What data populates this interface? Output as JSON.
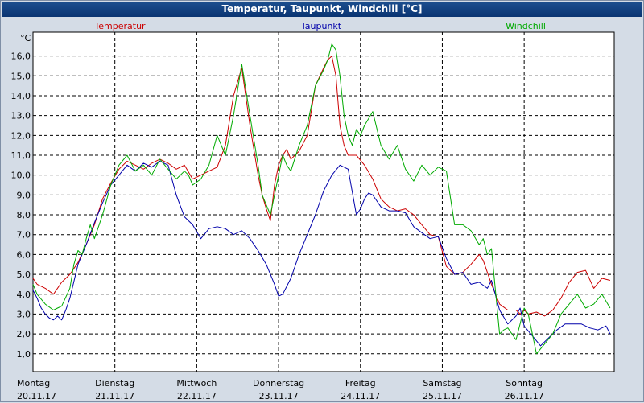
{
  "window": {
    "title": "Temperatur, Taupunkt, Windchill [°C]"
  },
  "chart_data": {
    "type": "line",
    "title": "Temperatur, Taupunkt, Windchill [°C]",
    "y_unit": "°C",
    "ylim": [
      0.1,
      17.2
    ],
    "yticks": [
      "1,0",
      "2,0",
      "3,0",
      "4,0",
      "5,0",
      "6,0",
      "7,0",
      "8,0",
      "9,0",
      "10,0",
      "11,0",
      "12,0",
      "13,0",
      "14,0",
      "15,0",
      "16,0"
    ],
    "xlim": [
      0,
      7.1
    ],
    "x_unit": "days from 20.11.17 00:00",
    "day_labels": [
      {
        "day": "Montag",
        "date": "20.11.17"
      },
      {
        "day": "Dienstag",
        "date": "21.11.17"
      },
      {
        "day": "Mittwoch",
        "date": "22.11.17"
      },
      {
        "day": "Donnerstag",
        "date": "23.11.17"
      },
      {
        "day": "Freitag",
        "date": "24.11.17"
      },
      {
        "day": "Samstag",
        "date": "25.11.17"
      },
      {
        "day": "Sonntag",
        "date": "26.11.17"
      }
    ],
    "grid": true,
    "legend_position": "top",
    "series": [
      {
        "name": "Temperatur",
        "color": "#cc0000",
        "x": [
          0,
          0.05,
          0.15,
          0.25,
          0.35,
          0.45,
          0.55,
          0.65,
          0.75,
          0.85,
          0.95,
          1.05,
          1.15,
          1.25,
          1.35,
          1.45,
          1.55,
          1.65,
          1.75,
          1.85,
          1.95,
          2.05,
          2.15,
          2.25,
          2.35,
          2.45,
          2.55,
          2.65,
          2.75,
          2.8,
          2.85,
          2.9,
          2.95,
          3.0,
          3.05,
          3.1,
          3.15,
          3.25,
          3.35,
          3.45,
          3.55,
          3.6,
          3.65,
          3.7,
          3.75,
          3.8,
          3.85,
          3.95,
          4.05,
          4.15,
          4.25,
          4.35,
          4.45,
          4.55,
          4.65,
          4.75,
          4.85,
          4.95,
          5.05,
          5.15,
          5.25,
          5.35,
          5.45,
          5.5,
          5.6,
          5.7,
          5.8,
          5.9,
          5.95,
          6.0,
          6.05,
          6.15,
          6.25,
          6.35,
          6.45,
          6.55,
          6.65,
          6.75,
          6.85,
          6.95,
          7.05
        ],
        "y": [
          4.8,
          4.5,
          4.3,
          4.0,
          4.6,
          5.0,
          5.6,
          6.5,
          7.5,
          8.8,
          9.6,
          10.3,
          10.7,
          10.5,
          10.3,
          10.6,
          10.8,
          10.6,
          10.3,
          10.5,
          9.8,
          10.0,
          10.2,
          10.4,
          11.5,
          14.0,
          15.4,
          12.5,
          10.0,
          9.0,
          8.3,
          7.7,
          9.5,
          10.5,
          11.0,
          11.3,
          10.8,
          11.2,
          12.0,
          14.5,
          15.4,
          15.8,
          16.0,
          15.0,
          12.5,
          11.5,
          11.0,
          11.0,
          10.5,
          9.8,
          8.8,
          8.4,
          8.2,
          8.3,
          8.0,
          7.5,
          7.0,
          6.9,
          5.4,
          5.0,
          5.1,
          5.5,
          6.0,
          5.7,
          4.5,
          3.5,
          3.2,
          3.2,
          3.0,
          3.2,
          3.0,
          3.1,
          2.9,
          3.2,
          3.8,
          4.6,
          5.1,
          5.2,
          4.3,
          4.8,
          4.7
        ]
      },
      {
        "name": "Taupunkt",
        "color": "#0000aa",
        "x": [
          0,
          0.05,
          0.1,
          0.15,
          0.2,
          0.25,
          0.3,
          0.35,
          0.4,
          0.45,
          0.55,
          0.65,
          0.75,
          0.85,
          0.95,
          1.05,
          1.15,
          1.25,
          1.35,
          1.45,
          1.55,
          1.65,
          1.75,
          1.85,
          1.95,
          2.05,
          2.15,
          2.25,
          2.35,
          2.45,
          2.55,
          2.65,
          2.75,
          2.85,
          2.95,
          3.0,
          3.05,
          3.15,
          3.25,
          3.35,
          3.45,
          3.55,
          3.65,
          3.75,
          3.85,
          3.95,
          4.0,
          4.05,
          4.1,
          4.15,
          4.25,
          4.35,
          4.45,
          4.55,
          4.65,
          4.75,
          4.85,
          4.95,
          5.05,
          5.15,
          5.25,
          5.35,
          5.45,
          5.55,
          5.6,
          5.7,
          5.8,
          5.9,
          5.95,
          6.0,
          6.1,
          6.2,
          6.3,
          6.4,
          6.5,
          6.6,
          6.7,
          6.8,
          6.9,
          7.0,
          7.05
        ],
        "y": [
          4.2,
          3.8,
          3.3,
          3.0,
          2.8,
          2.7,
          2.9,
          2.7,
          3.2,
          3.8,
          5.5,
          6.5,
          7.6,
          8.6,
          9.5,
          10.0,
          10.5,
          10.2,
          10.6,
          10.4,
          10.7,
          10.5,
          9.0,
          7.9,
          7.5,
          6.8,
          7.3,
          7.4,
          7.3,
          7.0,
          7.2,
          6.8,
          6.2,
          5.5,
          4.5,
          3.9,
          4.0,
          4.8,
          6.0,
          7.0,
          8.0,
          9.2,
          10.0,
          10.5,
          10.3,
          8.0,
          8.3,
          8.8,
          9.1,
          9.0,
          8.4,
          8.2,
          8.2,
          8.1,
          7.4,
          7.1,
          6.8,
          6.9,
          5.8,
          5.0,
          5.1,
          4.5,
          4.6,
          4.3,
          4.7,
          3.2,
          2.5,
          2.9,
          3.3,
          2.4,
          1.9,
          1.4,
          1.8,
          2.2,
          2.5,
          2.5,
          2.5,
          2.3,
          2.2,
          2.4,
          2.0
        ]
      },
      {
        "name": "Windchill",
        "color": "#00aa00",
        "x": [
          0,
          0.05,
          0.15,
          0.25,
          0.3,
          0.35,
          0.45,
          0.5,
          0.55,
          0.6,
          0.65,
          0.7,
          0.75,
          0.85,
          0.95,
          1.05,
          1.15,
          1.25,
          1.35,
          1.45,
          1.55,
          1.65,
          1.75,
          1.85,
          1.9,
          1.95,
          2.05,
          2.15,
          2.25,
          2.35,
          2.45,
          2.55,
          2.65,
          2.75,
          2.8,
          2.85,
          2.9,
          2.95,
          3.0,
          3.05,
          3.1,
          3.15,
          3.25,
          3.35,
          3.45,
          3.55,
          3.6,
          3.65,
          3.7,
          3.75,
          3.8,
          3.85,
          3.9,
          3.95,
          4.0,
          4.05,
          4.15,
          4.25,
          4.35,
          4.45,
          4.55,
          4.65,
          4.75,
          4.85,
          4.95,
          5.05,
          5.15,
          5.25,
          5.35,
          5.45,
          5.5,
          5.55,
          5.6,
          5.7,
          5.75,
          5.8,
          5.9,
          6.0,
          6.05,
          6.15,
          6.25,
          6.35,
          6.45,
          6.55,
          6.65,
          6.75,
          6.85,
          6.95,
          7.05
        ],
        "y": [
          4.5,
          4.0,
          3.5,
          3.2,
          3.3,
          3.4,
          4.3,
          5.5,
          6.2,
          6.0,
          6.8,
          7.5,
          6.8,
          8.0,
          9.5,
          10.5,
          11.0,
          10.2,
          10.5,
          10.0,
          10.8,
          10.3,
          9.8,
          10.2,
          10.0,
          9.5,
          9.8,
          10.5,
          12.0,
          11.0,
          13.0,
          15.6,
          13.0,
          10.5,
          9.0,
          8.5,
          8.0,
          9.0,
          10.0,
          11.0,
          10.5,
          10.2,
          11.5,
          12.5,
          14.5,
          15.3,
          15.8,
          16.6,
          16.3,
          15.0,
          13.0,
          12.0,
          11.5,
          12.3,
          12.0,
          12.5,
          13.2,
          11.5,
          10.8,
          11.5,
          10.3,
          9.7,
          10.5,
          10.0,
          10.4,
          10.2,
          7.5,
          7.5,
          7.2,
          6.5,
          6.8,
          6.0,
          6.3,
          2.0,
          2.2,
          2.3,
          1.7,
          3.3,
          3.0,
          1.0,
          1.5,
          2.0,
          3.0,
          3.5,
          4.0,
          3.3,
          3.5,
          4.0,
          3.3
        ]
      }
    ]
  }
}
